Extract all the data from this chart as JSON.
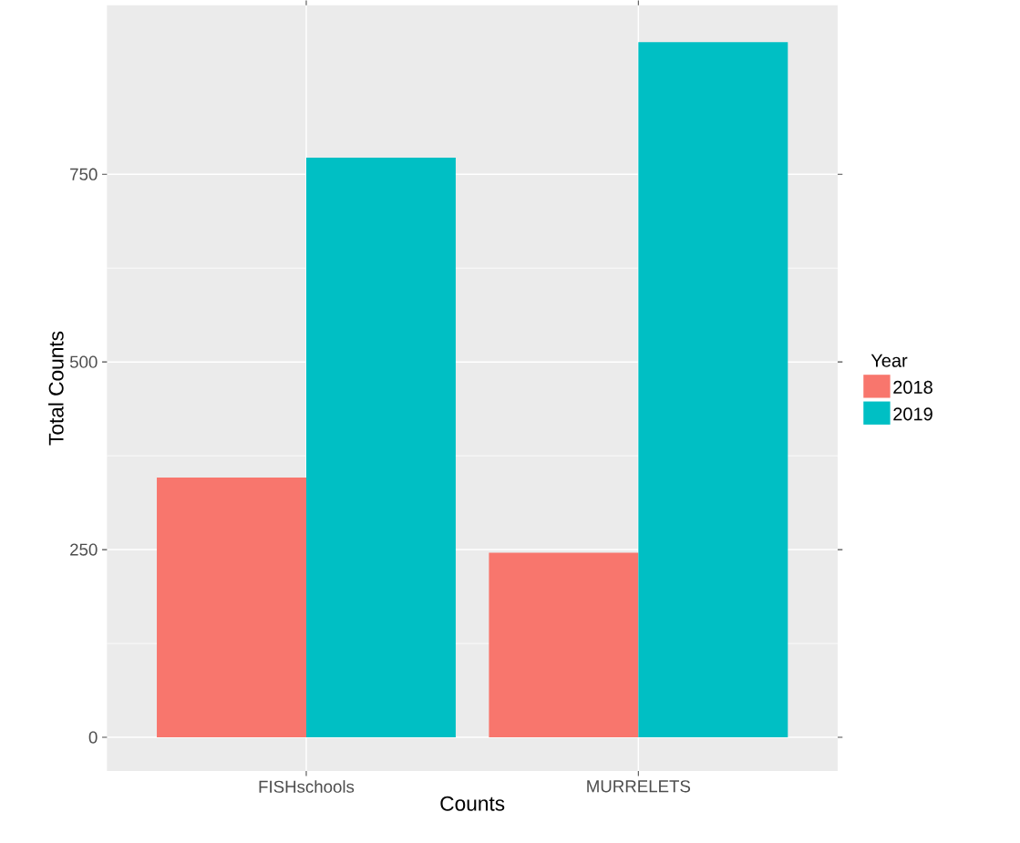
{
  "chart_data": {
    "type": "bar",
    "xlabel": "Counts",
    "ylabel": "Total Counts",
    "legend_title": "Year",
    "categories": [
      "FISHschools",
      "MURRELETS"
    ],
    "series": [
      {
        "name": "2018",
        "color": "#f8766d",
        "values": [
          346,
          246
        ]
      },
      {
        "name": "2019",
        "color": "#00bfc4",
        "values": [
          772,
          926
        ]
      }
    ],
    "ylim": [
      -45,
      975
    ],
    "yticks": [
      0,
      250,
      500,
      750
    ],
    "grid": true,
    "legend": "right"
  }
}
